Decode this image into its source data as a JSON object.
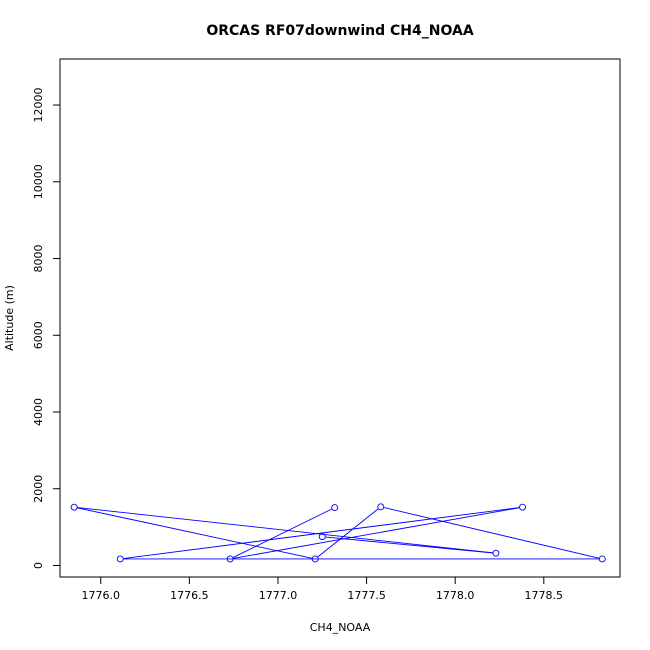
{
  "chart_data": {
    "type": "line",
    "title": "ORCAS RF07downwind CH4_NOAA",
    "xlabel": "CH4_NOAA",
    "ylabel": "Altitude (m)",
    "xlim": [
      1775.77,
      1778.93
    ],
    "ylim": [
      -300,
      13200
    ],
    "x_ticks": [
      1776.0,
      1776.5,
      1777.0,
      1777.5,
      1778.0,
      1778.5
    ],
    "x_tick_labels": [
      "1776.0",
      "1776.5",
      "1777.0",
      "1777.5",
      "1778.0",
      "1778.5"
    ],
    "y_ticks": [
      0,
      2000,
      4000,
      6000,
      8000,
      10000,
      12000
    ],
    "y_tick_labels": [
      "0",
      "2000",
      "4000",
      "6000",
      "8000",
      "10000",
      "12000"
    ],
    "grid": false,
    "series": [
      {
        "color": "#0000ff",
        "marker": "open-circle",
        "x": [
          1777.25,
          1778.23,
          1775.85,
          1777.21,
          1777.58,
          1778.83,
          1776.11,
          1778.38,
          1776.73,
          1777.32
        ],
        "y": [
          750,
          320,
          1520,
          170,
          1530,
          170,
          170,
          1520,
          170,
          1510
        ]
      }
    ]
  }
}
